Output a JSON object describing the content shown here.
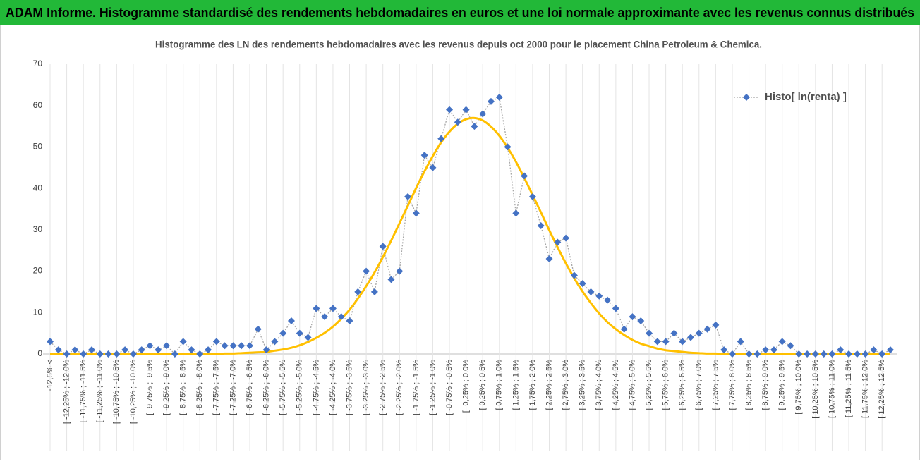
{
  "header": {
    "title": "ADAM Informe. Histogramme standardisé des rendements hebdomadaires en euros et une loi normale approximante avec les revenus connus distribués"
  },
  "chart_data": {
    "type": "line",
    "title": "Histogramme des LN des rendements hebdomadaires avec les revenus depuis oct 2000 pour le placement China Petroleum & Chemica.",
    "categories": [
      "-12,5% <",
      null,
      "[ -12,25% ; -12,0%",
      null,
      "[ -11,75% ; -11,5%",
      null,
      "[ -11,25% ; -11,0%",
      null,
      "[ -10,75% ; -10,5%",
      null,
      "[ -10,25% ; -10,0%",
      null,
      "[ -9,75% ; -9,5%",
      null,
      "[ -9,25% ; -9,0%",
      null,
      "[ -8,75% ; -8,5%",
      null,
      "[ -8,25% ; -8,0%",
      null,
      "[ -7,75% ; -7,5%",
      null,
      "[ -7,25% ; -7,0%",
      null,
      "[ -6,75% ; -6,5%",
      null,
      "[ -6,25% ; -6,0%",
      null,
      "[ -5,75% ; -5,5%",
      null,
      "[ -5,25% ; -5,0%",
      null,
      "[ -4,75% ; -4,5%",
      null,
      "[ -4,25% ; -4,0%",
      null,
      "[ -3,75% ; -3,5%",
      null,
      "[ -3,25% ; -3,0%",
      null,
      "[ -2,75% ; -2,5%",
      null,
      "[ -2,25% ; -2,0%",
      null,
      "[ -1,75% ; -1,5%",
      null,
      "[ -1,25% ; -1,0%",
      null,
      "[ -0,75% ; -0,5%",
      null,
      "[ -0,25% ; 0,0%",
      null,
      "[ 0,25% ; 0,5%",
      null,
      "[ 0,75% ; 1,0%",
      null,
      "[ 1,25% ; 1,5%",
      null,
      "[ 1,75% ; 2,0%",
      null,
      "[ 2,25% ; 2,5%",
      null,
      "[ 2,75% ; 3,0%",
      null,
      "[ 3,25% ; 3,5%",
      null,
      "[ 3,75% ; 4,0%",
      null,
      "[ 4,25% ; 4,5%",
      null,
      "[ 4,75% ; 5,0%",
      null,
      "[ 5,25% ; 5,5%",
      null,
      "[ 5,75% ; 6,0%",
      null,
      "[ 6,25% ; 6,5%",
      null,
      "[ 6,75% ; 7,0%",
      null,
      "[ 7,25% ; 7,5%",
      null,
      "[ 7,75% ; 8,0%",
      null,
      "[ 8,25% ; 8,5%",
      null,
      "[ 8,75% ; 9,0%",
      null,
      "[ 9,25% ; 9,5%",
      null,
      "[ 9,75% ; 10,0%",
      null,
      "[ 10,25% ; 10,5%",
      null,
      "[ 10,75% ; 11,0%",
      null,
      "[ 11,25% ; 11,5%",
      null,
      "[ 11,75% ; 12,0%",
      null,
      "[ 12,25% ; 12,5%",
      null
    ],
    "series": [
      {
        "name": "Histo[ ln(renta) ]",
        "color": "#4472c4",
        "line_color": "#a6a6a6",
        "values": [
          3,
          1,
          0,
          1,
          0,
          1,
          0,
          0,
          0,
          1,
          0,
          1,
          2,
          1,
          2,
          0,
          3,
          1,
          0,
          1,
          3,
          2,
          2,
          2,
          2,
          6,
          1,
          3,
          5,
          8,
          5,
          4,
          11,
          9,
          11,
          9,
          8,
          15,
          20,
          15,
          26,
          18,
          20,
          38,
          34,
          48,
          45,
          52,
          59,
          56,
          59,
          55,
          58,
          61,
          62,
          50,
          34,
          43,
          38,
          31,
          23,
          27,
          28,
          19,
          17,
          15,
          14,
          13,
          11,
          6,
          9,
          8,
          5,
          3,
          3,
          5,
          3,
          4,
          5,
          6,
          7,
          1,
          0,
          3,
          0,
          0,
          1,
          1,
          3,
          2,
          0,
          0,
          0,
          0,
          0,
          1,
          0,
          0,
          0,
          1,
          0,
          1
        ]
      },
      {
        "color": "#ffc000",
        "smooth": true,
        "values": [
          0,
          0,
          0,
          0,
          0,
          0,
          0,
          0,
          0,
          0,
          0,
          0,
          0,
          0,
          0,
          0,
          0,
          0,
          0,
          0,
          0,
          0.1,
          0.1,
          0.2,
          0.3,
          0.4,
          0.5,
          0.8,
          1.1,
          1.5,
          2.1,
          2.9,
          3.9,
          5.1,
          6.6,
          8.5,
          10.7,
          13.4,
          16.4,
          19.7,
          23.4,
          27.4,
          31.6,
          35.8,
          40.1,
          44.1,
          47.8,
          51.1,
          53.7,
          55.6,
          56.7,
          57.0,
          56.4,
          54.9,
          52.7,
          49.8,
          46.4,
          42.5,
          38.4,
          34.2,
          29.9,
          25.8,
          21.9,
          18.3,
          15.1,
          12.3,
          9.8,
          7.7,
          6.0,
          4.6,
          3.4,
          2.5,
          1.9,
          1.3,
          0.9,
          0.7,
          0.5,
          0.3,
          0.2,
          0.1,
          0.1,
          0,
          0,
          0,
          0,
          0,
          0,
          0,
          0,
          0,
          0,
          0,
          0,
          0,
          0,
          0,
          0,
          0,
          0,
          0,
          0,
          0
        ]
      }
    ],
    "ylim": [
      0,
      70
    ],
    "yticks": [
      0,
      10,
      20,
      30,
      40,
      50,
      60,
      70
    ],
    "grid": "x",
    "legend": "top-right"
  }
}
